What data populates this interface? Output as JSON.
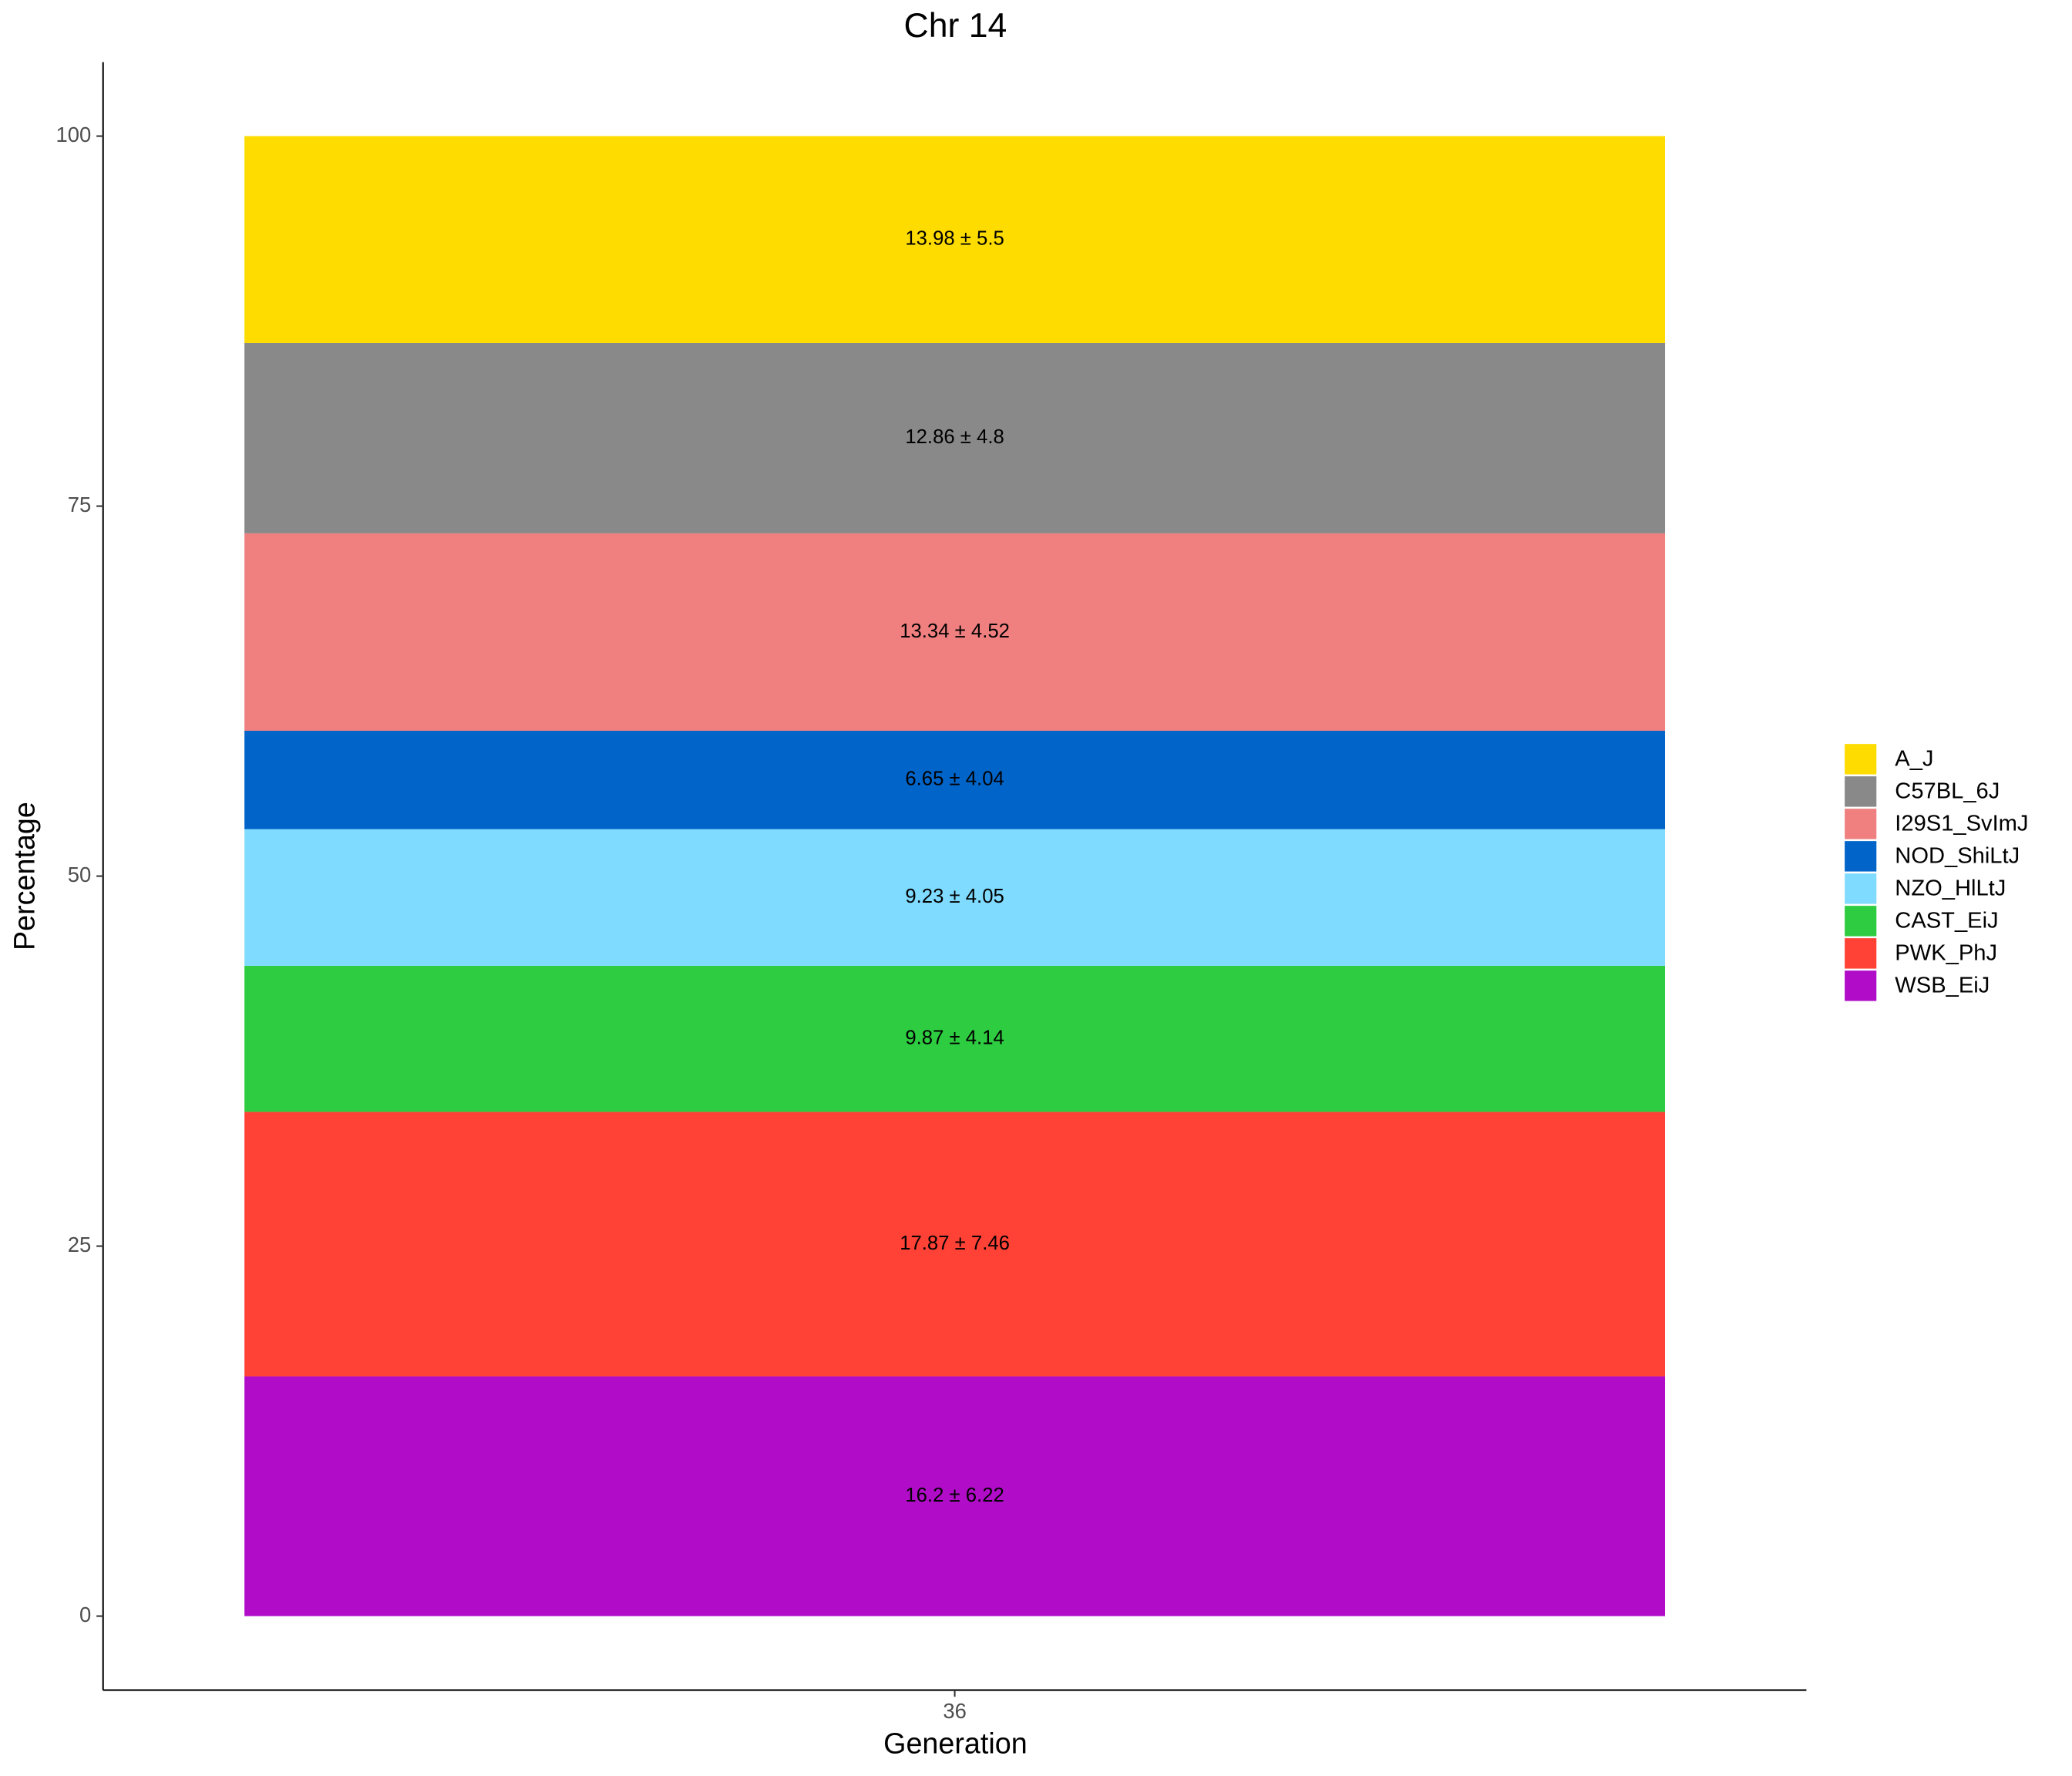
{
  "chart_data": {
    "type": "stacked_bar",
    "title": "Chr 14",
    "x_label": "Generation",
    "y_label": "Percentage",
    "categories": [
      "36"
    ],
    "series": [
      {
        "name": "A_J",
        "color": "#FFDC00",
        "values": [
          13.98
        ],
        "value_labels": [
          "13.98 ± 5.5"
        ]
      },
      {
        "name": "C57BL_6J",
        "color": "#898989",
        "values": [
          12.86
        ],
        "value_labels": [
          "12.86 ± 4.8"
        ]
      },
      {
        "name": "I29S1_SvImJ",
        "color": "#F08080",
        "values": [
          13.34
        ],
        "value_labels": [
          "13.34 ± 4.52"
        ]
      },
      {
        "name": "NOD_ShiLtJ",
        "color": "#0064C9",
        "values": [
          6.65
        ],
        "value_labels": [
          "6.65 ± 4.04"
        ]
      },
      {
        "name": "NZO_HlLtJ",
        "color": "#7FDBFF",
        "values": [
          9.23
        ],
        "value_labels": [
          "9.23 ± 4.05"
        ]
      },
      {
        "name": "CAST_EiJ",
        "color": "#2ECC40",
        "values": [
          9.87
        ],
        "value_labels": [
          "9.87 ± 4.14"
        ]
      },
      {
        "name": "PWK_PhJ",
        "color": "#FF4136",
        "values": [
          17.87
        ],
        "value_labels": [
          "17.87 ± 7.46"
        ]
      },
      {
        "name": "WSB_EiJ",
        "color": "#B10DC9",
        "values": [
          16.2
        ],
        "value_labels": [
          "16.2 ± 6.22"
        ]
      }
    ],
    "ylim": [
      -5,
      105
    ],
    "yticks": [
      0,
      25,
      50,
      75,
      100
    ],
    "grid": false,
    "legend": "right"
  }
}
